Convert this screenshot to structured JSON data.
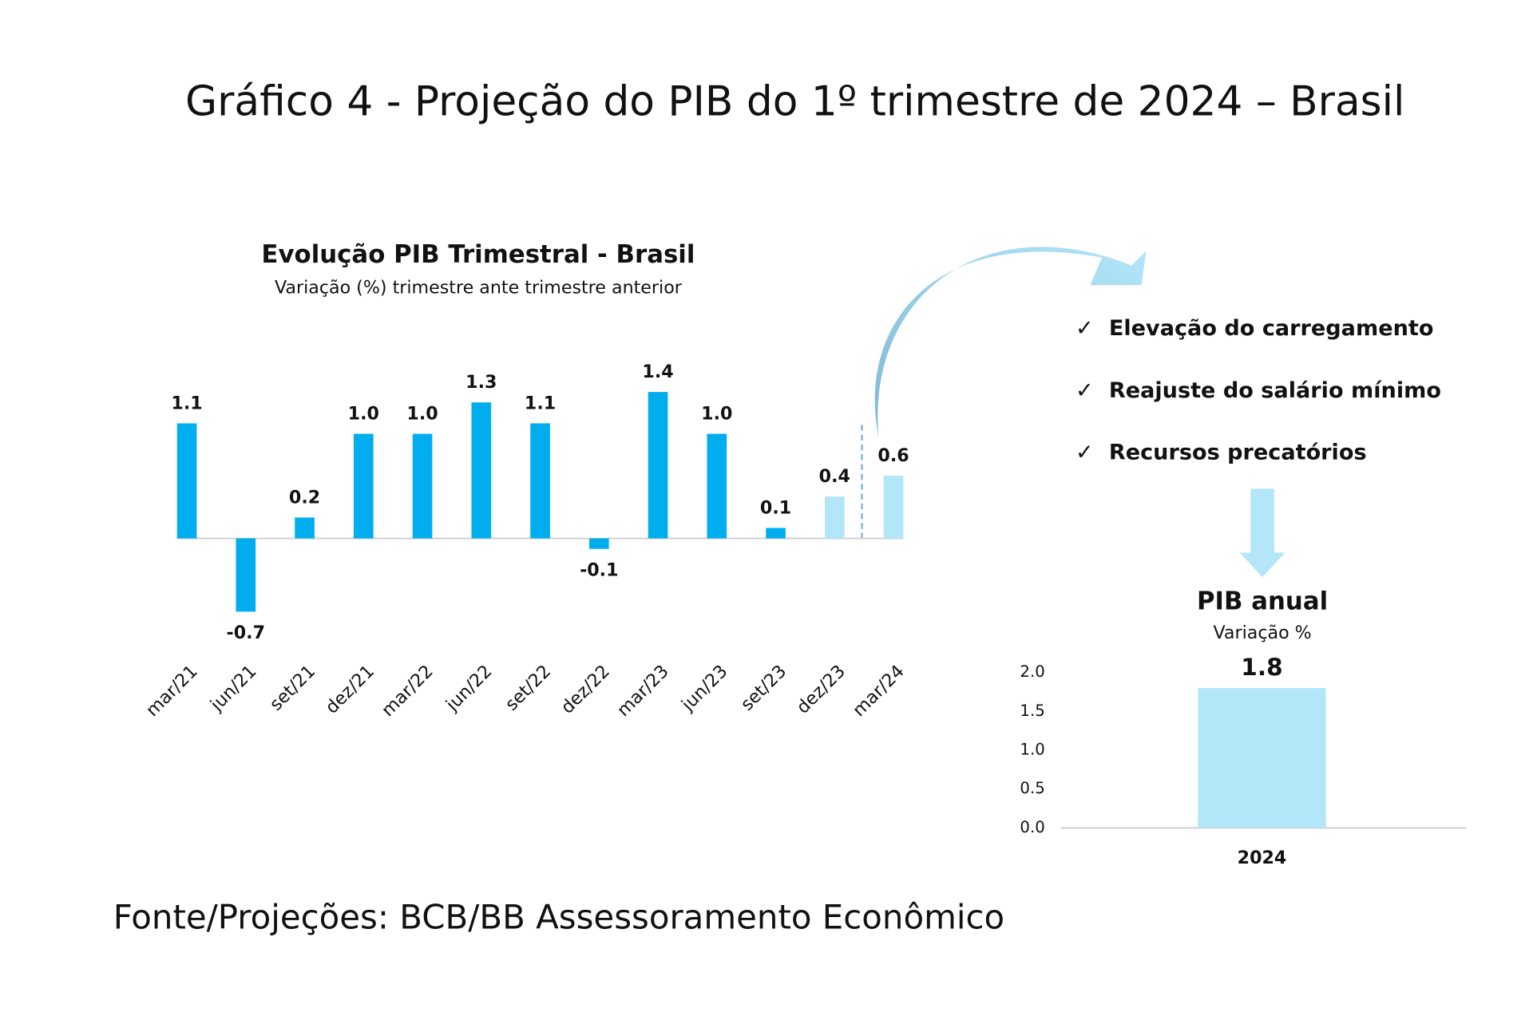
{
  "title": "Gráfico 4 - Projeção do PIB do 1º trimestre de 2024 – Brasil",
  "source": "Fonte/Projeções: BCB/BB Assessoramento Econômico",
  "notes": [
    "Elevação do carregamento",
    "Reajuste do salário mínimo",
    "Recursos precatórios"
  ],
  "chart_data": [
    {
      "type": "bar",
      "title": "Evolução PIB Trimestral - Brasil",
      "subtitle": "Variação (%) trimestre ante trimestre anterior",
      "categories": [
        "mar/21",
        "jun/21",
        "set/21",
        "dez/21",
        "mar/22",
        "jun/22",
        "set/22",
        "dez/22",
        "mar/23",
        "jun/23",
        "set/23",
        "dez/23",
        "mar/24"
      ],
      "values": [
        1.1,
        -0.7,
        0.2,
        1.0,
        1.0,
        1.3,
        1.1,
        -0.1,
        1.4,
        1.0,
        0.1,
        0.4,
        0.6
      ],
      "value_labels": [
        "1.1",
        "-0.7",
        "0.2",
        "1.0",
        "1.0",
        "1.3",
        "1.1",
        "-0.1",
        "1.4",
        "1.0",
        "0.1",
        "0.4",
        "0.6"
      ],
      "colors": [
        "#00aeef",
        "#00aeef",
        "#00aeef",
        "#00aeef",
        "#00aeef",
        "#00aeef",
        "#00aeef",
        "#00aeef",
        "#00aeef",
        "#00aeef",
        "#00aeef",
        "#b3e6f9",
        "#b3e6f9"
      ],
      "ylim": [
        -1,
        1.5
      ]
    },
    {
      "type": "bar",
      "title": "PIB anual",
      "subtitle": "Variação %",
      "categories": [
        "2024"
      ],
      "values": [
        1.8
      ],
      "value_labels": [
        "1.8"
      ],
      "color": "#b3e6f9",
      "ylim": [
        0,
        2
      ],
      "yticks": [
        {
          "value": 0,
          "label": "0.0"
        },
        {
          "value": 0.5,
          "label": "0.5"
        },
        {
          "value": 1,
          "label": "1.0"
        },
        {
          "value": 1.5,
          "label": "1.5"
        },
        {
          "value": 2,
          "label": "2.0"
        }
      ]
    }
  ]
}
